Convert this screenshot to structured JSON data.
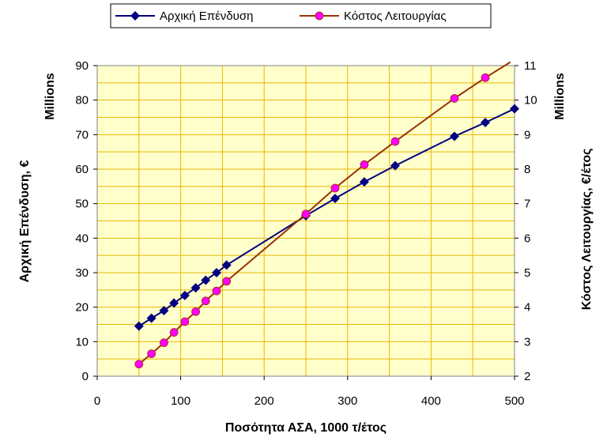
{
  "chart_data": {
    "type": "line",
    "x_label": "Ποσότητα ΑΣΑ, 1000 τ/έτος",
    "x_range": [
      0,
      500
    ],
    "x_ticks": [
      "0",
      "100",
      "200",
      "300",
      "400",
      "500"
    ],
    "left_axis": {
      "label": "Αρχική Επένδυση, €",
      "unit_label": "Millions",
      "range": [
        0,
        90
      ],
      "ticks": [
        "0",
        "10",
        "20",
        "30",
        "40",
        "50",
        "60",
        "70",
        "80",
        "90"
      ]
    },
    "right_axis": {
      "label": "Κόστος Λειτουργίας, €/έτος",
      "unit_label": "Millions",
      "range": [
        2,
        11
      ],
      "ticks": [
        "2",
        "3",
        "4",
        "5",
        "6",
        "7",
        "8",
        "9",
        "10",
        "11"
      ]
    },
    "grid": true,
    "legend_position": "top",
    "series": [
      {
        "name": "Αρχική Επένδυση",
        "axis": "left",
        "color": "#000080",
        "marker": "diamond",
        "points": [
          [
            50,
            14.5
          ],
          [
            65,
            16.8
          ],
          [
            80,
            19.0
          ],
          [
            92,
            21.2
          ],
          [
            105,
            23.4
          ],
          [
            118,
            25.6
          ],
          [
            130,
            27.8
          ],
          [
            143,
            30.0
          ],
          [
            155,
            32.2
          ],
          [
            250,
            46.5
          ],
          [
            285,
            51.5
          ],
          [
            320,
            56.3
          ],
          [
            357,
            61.0
          ],
          [
            428,
            69.5
          ],
          [
            465,
            73.5
          ],
          [
            500,
            77.5
          ]
        ],
        "marker_points": [
          [
            50,
            14.5
          ],
          [
            65,
            16.8
          ],
          [
            80,
            19.0
          ],
          [
            92,
            21.2
          ],
          [
            105,
            23.4
          ],
          [
            118,
            25.6
          ],
          [
            130,
            27.8
          ],
          [
            143,
            30.0
          ],
          [
            155,
            32.2
          ],
          [
            250,
            46.5
          ],
          [
            285,
            51.5
          ],
          [
            320,
            56.3
          ],
          [
            357,
            61.0
          ],
          [
            428,
            69.5
          ],
          [
            465,
            73.5
          ],
          [
            500,
            77.5
          ]
        ]
      },
      {
        "name": "Κόστος Λειτουργίας",
        "axis": "right",
        "color": "#993300",
        "marker_color": "#ff00ff",
        "marker": "circle",
        "points": [
          [
            50,
            2.35
          ],
          [
            65,
            2.65
          ],
          [
            80,
            2.97
          ],
          [
            92,
            3.27
          ],
          [
            105,
            3.58
          ],
          [
            118,
            3.87
          ],
          [
            130,
            4.18
          ],
          [
            143,
            4.47
          ],
          [
            155,
            4.75
          ],
          [
            250,
            6.7
          ],
          [
            285,
            7.45
          ],
          [
            320,
            8.13
          ],
          [
            357,
            8.8
          ],
          [
            428,
            10.05
          ],
          [
            465,
            10.65
          ],
          [
            495,
            11.1
          ]
        ],
        "marker_points": [
          [
            50,
            2.35
          ],
          [
            65,
            2.65
          ],
          [
            80,
            2.97
          ],
          [
            92,
            3.27
          ],
          [
            105,
            3.58
          ],
          [
            118,
            3.87
          ],
          [
            130,
            4.18
          ],
          [
            143,
            4.47
          ],
          [
            155,
            4.75
          ],
          [
            250,
            6.7
          ],
          [
            285,
            7.45
          ],
          [
            320,
            8.13
          ],
          [
            357,
            8.8
          ],
          [
            428,
            10.05
          ],
          [
            465,
            10.65
          ]
        ]
      }
    ]
  }
}
